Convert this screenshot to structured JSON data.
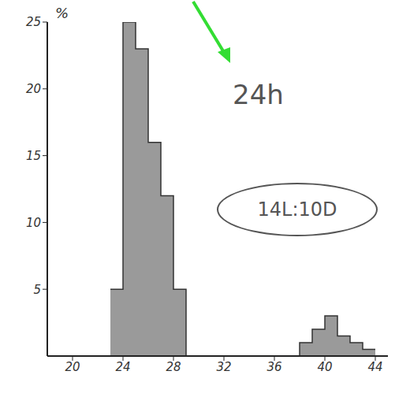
{
  "chart_data": {
    "type": "histogram",
    "ylabel": "%",
    "annotations": [
      "24h",
      "14L:10D"
    ],
    "bins": [
      23,
      24,
      25,
      26,
      27,
      28,
      29,
      30,
      31,
      32,
      33,
      34,
      35,
      36,
      37,
      38,
      39,
      40,
      41,
      42,
      43,
      44
    ],
    "counts": [
      5,
      25,
      23,
      16,
      12,
      5,
      0,
      0,
      0,
      0,
      0,
      0,
      0,
      0,
      0,
      1,
      2,
      3,
      1.5,
      1,
      0.5
    ],
    "color": "#9a9a9a",
    "xlim": [
      18,
      45
    ],
    "xticks": [
      20,
      24,
      28,
      32,
      36,
      40,
      44
    ],
    "ylim": [
      0,
      25
    ],
    "yticks": [
      5,
      10,
      15,
      20,
      25
    ],
    "grid": false
  }
}
